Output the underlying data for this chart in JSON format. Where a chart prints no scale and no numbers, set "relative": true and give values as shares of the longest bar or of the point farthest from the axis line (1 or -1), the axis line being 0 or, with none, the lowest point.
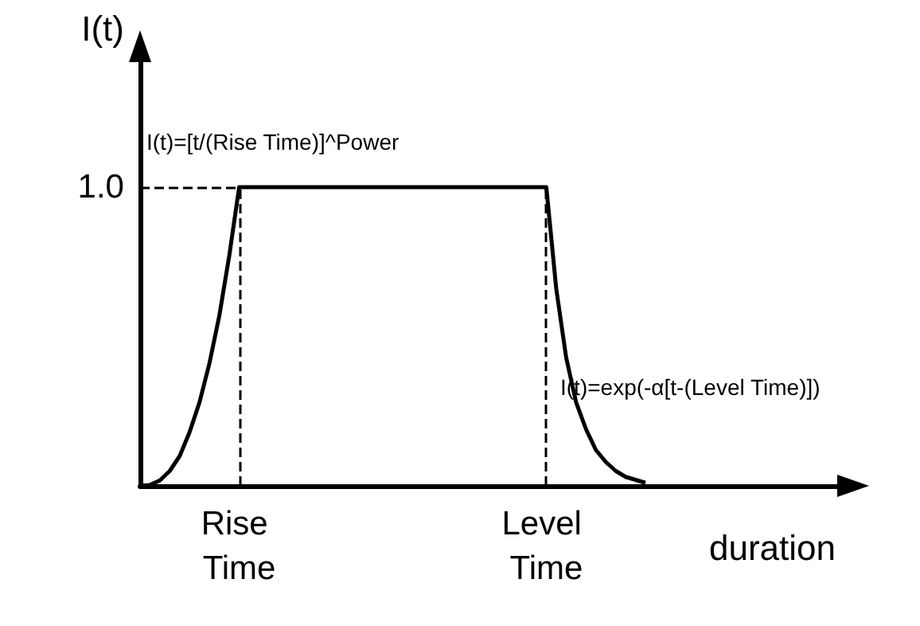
{
  "chart_data": {
    "type": "line",
    "relative": true,
    "xlabel": "duration",
    "ylabel": "I(t)",
    "categories": [
      null,
      null,
      null,
      null,
      null,
      null,
      null,
      null,
      null,
      null,
      "Rise Time",
      null,
      null,
      null,
      null,
      null,
      null,
      null,
      null,
      null,
      null,
      null,
      null,
      null,
      null,
      null,
      null,
      null,
      null,
      null,
      null,
      null,
      null,
      null,
      null,
      null,
      null,
      null,
      null,
      null,
      null,
      "Level Time",
      null,
      null,
      null,
      null,
      null,
      null,
      null,
      null,
      null,
      null,
      null,
      null,
      null,
      null,
      null,
      null,
      null,
      null,
      null,
      null,
      null,
      null,
      null,
      null,
      null,
      null,
      null,
      null,
      null,
      null
    ],
    "series": [
      {
        "color": "#000000",
        "values": [
          0,
          0.003,
          0.018,
          0.05,
          0.1,
          0.18,
          0.28,
          0.41,
          0.57,
          0.77,
          1,
          1,
          1,
          1,
          1,
          1,
          1,
          1,
          1,
          1,
          1,
          1,
          1,
          1,
          1,
          1,
          1,
          1,
          1,
          1,
          1,
          1,
          1,
          1,
          1,
          1,
          1,
          1,
          1,
          1,
          1,
          1,
          0.66,
          0.43,
          0.28,
          0.19,
          0.12,
          0.08,
          0.05,
          0.03,
          0.02,
          0.01,
          null,
          null,
          null,
          null,
          null,
          null,
          null,
          null,
          null,
          null,
          null,
          null,
          null,
          null,
          null,
          null,
          null,
          null,
          null,
          null
        ]
      }
    ],
    "ref_lines": [
      {
        "axis": "y",
        "value": 1,
        "label": "1.0",
        "line_style": "dashed",
        "color": "#000000"
      },
      {
        "axis": "x",
        "value": "Rise Time",
        "line_style": "dashed",
        "color": "#000000"
      },
      {
        "axis": "x",
        "value": "Level Time",
        "line_style": "dashed",
        "color": "#000000"
      }
    ],
    "annotations": [
      "I(t)=[t/(Rise Time)]^Power",
      "I(t)=exp(-α[t-(Level Time)])"
    ],
    "grid": false,
    "marker": "none",
    "line_style": "solid"
  }
}
